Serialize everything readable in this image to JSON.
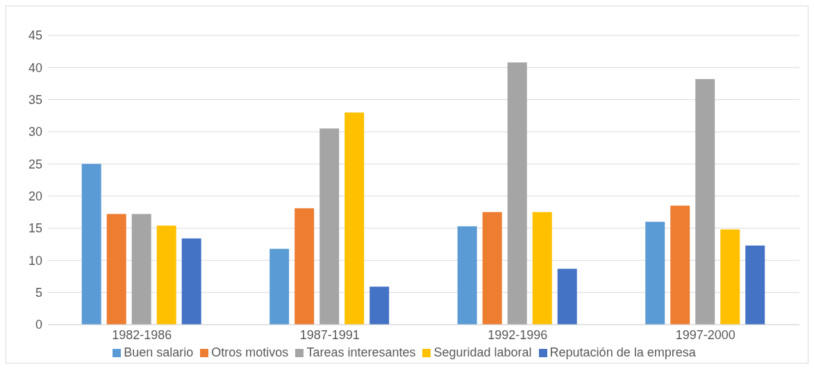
{
  "chart_data": {
    "type": "bar",
    "categories": [
      "1982-1986",
      "1987-1991",
      "1992-1996",
      "1997-2000"
    ],
    "series": [
      {
        "name": "Buen salario",
        "color": "#5b9bd5",
        "values": [
          25,
          11.8,
          15.3,
          16
        ]
      },
      {
        "name": "Otros motivos",
        "color": "#ed7d31",
        "values": [
          17.2,
          18.1,
          17.5,
          18.5
        ]
      },
      {
        "name": "Tareas interesantes",
        "color": "#a5a5a5",
        "values": [
          17.2,
          30.5,
          40.8,
          38.2
        ]
      },
      {
        "name": "Seguridad laboral",
        "color": "#ffc000",
        "values": [
          15.4,
          33,
          17.5,
          14.8
        ]
      },
      {
        "name": "Reputación de la empresa",
        "color": "#4472c4",
        "values": [
          13.4,
          5.9,
          8.7,
          12.3
        ]
      }
    ],
    "ylim": [
      0,
      45
    ],
    "yticks": [
      0,
      5,
      10,
      15,
      20,
      25,
      30,
      35,
      40,
      45
    ],
    "grid": "y",
    "legend": "bottom"
  }
}
